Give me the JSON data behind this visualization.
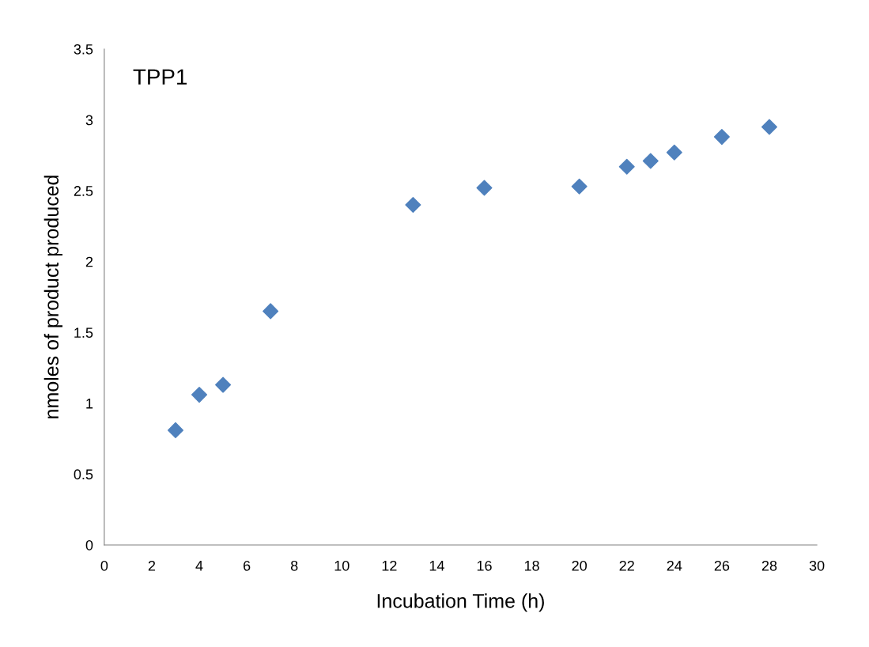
{
  "chart_data": {
    "type": "scatter",
    "title": "TPP1",
    "xlabel": "Incubation Time (h)",
    "ylabel": "nmoles of product produced",
    "x": [
      3,
      4,
      5,
      7,
      13,
      16,
      20,
      22,
      23,
      24,
      26,
      28
    ],
    "series": [
      {
        "color": "#4f81bd",
        "values": [
          0.81,
          1.06,
          1.13,
          1.65,
          2.4,
          2.52,
          2.53,
          2.67,
          2.71,
          2.77,
          2.88,
          2.95
        ]
      }
    ],
    "xlim": [
      0,
      30
    ],
    "xticks": [
      0,
      2,
      4,
      6,
      8,
      10,
      12,
      14,
      16,
      18,
      20,
      22,
      24,
      26,
      28,
      30
    ],
    "ylim": [
      0,
      3.5
    ],
    "yticks": [
      0,
      0.5,
      1,
      1.5,
      2,
      2.5,
      3,
      3.5
    ],
    "marker": "diamond",
    "grid": false,
    "legend": false
  }
}
